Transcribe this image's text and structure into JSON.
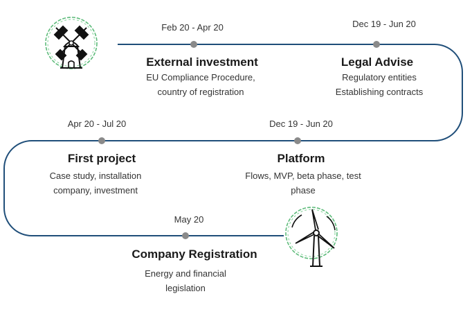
{
  "milestones": [
    {
      "date": "Feb 20 - Apr 20",
      "title": "External investment",
      "desc": [
        "EU Compliance Procedure,",
        "country of  registration"
      ]
    },
    {
      "date": "Dec 19 - Jun 20",
      "title": "Legal Advise",
      "desc": [
        "Regulatory entities",
        "Establishing contracts"
      ]
    },
    {
      "date": "Apr 20 - Jul 20",
      "title": "First project",
      "desc": [
        "Case study, installation",
        "company, investment"
      ]
    },
    {
      "date": "Dec 19 - Jun 20",
      "title": "Platform",
      "desc": [
        "Flows, MVP, beta phase, test",
        "phase"
      ]
    },
    {
      "date": "May 20",
      "title": "Company Registration",
      "desc": [
        "Energy and financial",
        "legislation"
      ]
    }
  ],
  "colors": {
    "line": "#1f4e79",
    "node": "#8a8a8a",
    "icon_ring": "#5dbb7a",
    "icon_stroke": "#111111"
  },
  "icons": [
    "windmill-icon",
    "wind-turbine-icon"
  ]
}
